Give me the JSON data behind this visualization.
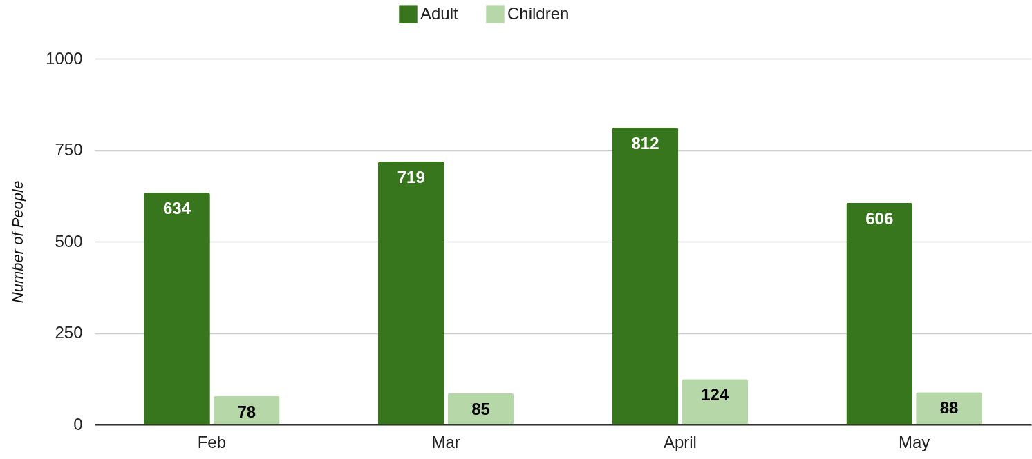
{
  "chart_data": {
    "type": "bar",
    "ylabel": "Number of People",
    "categories": [
      "Feb",
      "Mar",
      "April",
      "May"
    ],
    "series": [
      {
        "name": "Adult",
        "color": "#38761d",
        "values": [
          634,
          719,
          812,
          606
        ]
      },
      {
        "name": "Children",
        "color": "#b6d7a8",
        "values": [
          78,
          85,
          124,
          88
        ]
      }
    ],
    "ylim": [
      0,
      1000
    ],
    "yticks": [
      0,
      250,
      500,
      750,
      1000
    ],
    "grid": "y",
    "legend": "top",
    "data_labels": true
  }
}
